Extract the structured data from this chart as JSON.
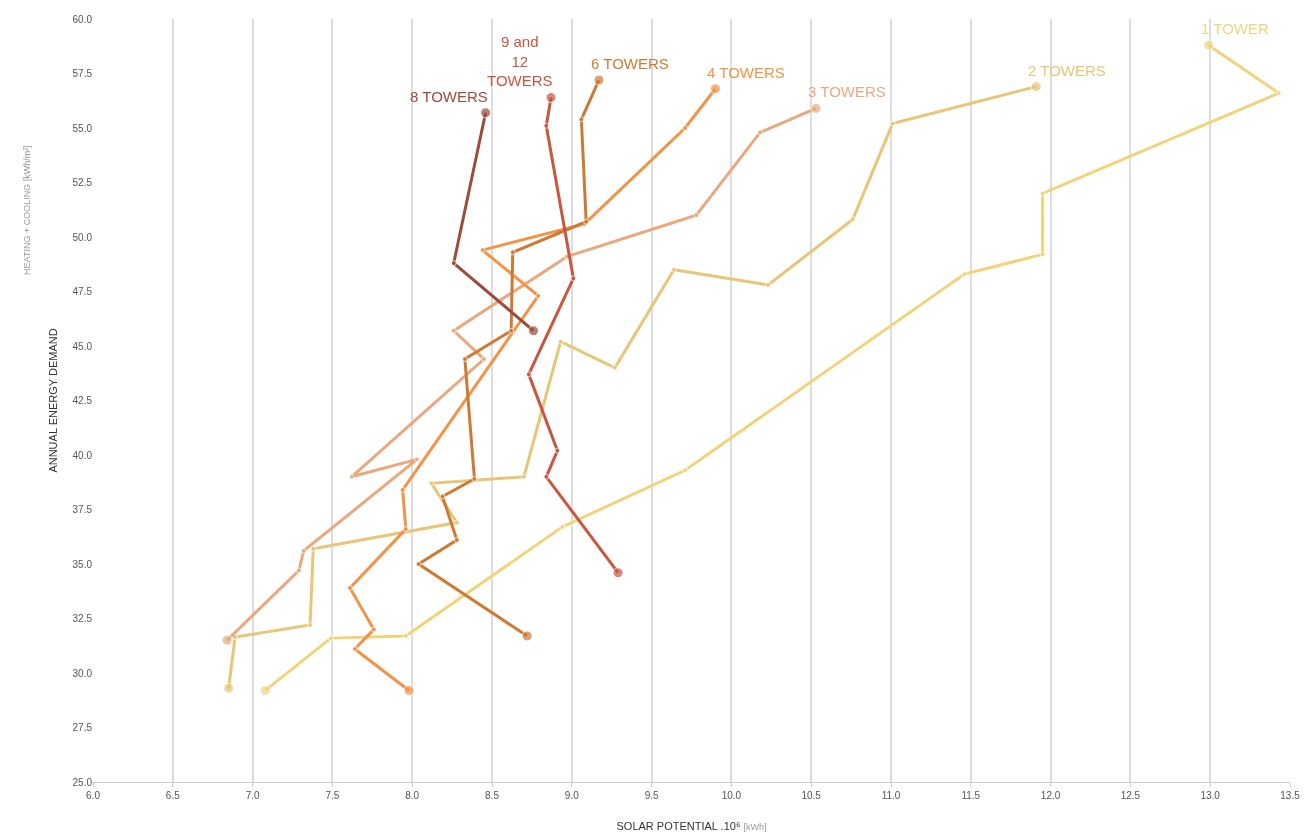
{
  "chart_data": {
    "type": "line",
    "xlabel": "SOLAR POTENTIAL .10⁶ [kWh]",
    "ylabel": "ANNUAL ENERGY DEMAND",
    "annotations": [
      "HEATING + COOLING [kWh/m²]"
    ],
    "xlim": [
      6,
      13.5
    ],
    "xticks": [
      {
        "value": 6,
        "label": "6.0"
      },
      6.5,
      {
        "value": 7,
        "label": "7.0"
      },
      7.5,
      {
        "value": 8,
        "label": "8.0"
      },
      8.5,
      {
        "value": 9,
        "label": "9.0"
      },
      9.5,
      {
        "value": 10,
        "label": "10.0"
      },
      10.5,
      {
        "value": 11,
        "label": "11.0"
      },
      11.5,
      {
        "value": 12,
        "label": "12.0"
      },
      12.5,
      {
        "value": 13,
        "label": "13.0"
      },
      13.5
    ],
    "ylim": [
      25,
      60
    ],
    "yticks": [
      {
        "value": 25,
        "label": "25.0"
      },
      27.5,
      {
        "value": 30,
        "label": "30.0"
      },
      32.5,
      {
        "value": 35,
        "label": "35.0"
      },
      37.5,
      {
        "value": 40,
        "label": "40.0"
      },
      42.5,
      {
        "value": 45,
        "label": "45.0"
      },
      47.5,
      {
        "value": 50,
        "label": "50.0"
      },
      52.5,
      {
        "value": 55,
        "label": "55.0"
      },
      57.5,
      {
        "value": 60,
        "label": "60.0"
      }
    ],
    "grid": "x",
    "legend": false,
    "marker": "circle",
    "line_style": "solid",
    "series": [
      {
        "name": "1 TOWER",
        "color": "#f2d27a",
        "x": [
          7.08,
          7.49,
          7.96,
          8.94,
          9.71,
          11.46,
          11.95,
          11.95,
          13.43,
          12.99
        ],
        "values": [
          29.2,
          31.6,
          31.7,
          36.7,
          39.3,
          48.3,
          49.2,
          52.0,
          56.6,
          58.8
        ]
      },
      {
        "name": "2 TOWERS",
        "color": "#e9c577",
        "x": [
          6.85,
          6.89,
          7.36,
          7.38,
          8.28,
          8.12,
          8.7,
          8.93,
          9.27,
          9.64,
          10.23,
          10.76,
          11.01,
          11.91
        ],
        "values": [
          29.3,
          31.65,
          32.2,
          35.7,
          36.9,
          38.7,
          39.0,
          45.2,
          44.0,
          48.5,
          47.8,
          50.8,
          55.2,
          56.9
        ]
      },
      {
        "name": "3 TOWERS",
        "color": "#eba77e",
        "x": [
          6.84,
          7.29,
          7.32,
          8.03,
          7.62,
          8.45,
          8.26,
          8.97,
          9.78,
          10.18,
          10.53
        ],
        "values": [
          31.5,
          34.7,
          35.6,
          39.8,
          39.0,
          44.4,
          45.7,
          49.1,
          51.0,
          54.8,
          55.9
        ]
      },
      {
        "name": "4 TOWERS",
        "color": "#f39347",
        "x": [
          7.98,
          7.64,
          7.76,
          7.61,
          7.96,
          7.94,
          8.79,
          8.44,
          9.08,
          9.71,
          9.9
        ],
        "values": [
          29.2,
          31.1,
          32.0,
          33.9,
          36.6,
          38.4,
          47.3,
          49.4,
          50.6,
          55.0,
          56.8
        ]
      },
      {
        "name": "6 TOWERS",
        "color": "#cf7a32",
        "x": [
          8.72,
          8.04,
          8.28,
          8.19,
          8.39,
          8.33,
          8.62,
          8.63,
          9.09,
          9.06,
          9.17
        ],
        "values": [
          31.7,
          35.0,
          36.1,
          38.1,
          38.9,
          44.4,
          45.7,
          49.3,
          50.7,
          55.4,
          57.2
        ]
      },
      {
        "name": "9 and 12 TOWERS",
        "color": "#c9563f",
        "x": [
          9.29,
          8.84,
          8.91,
          8.73,
          9.01,
          8.84,
          8.87
        ],
        "values": [
          34.6,
          39.0,
          40.2,
          43.7,
          48.1,
          55.1,
          56.4
        ]
      },
      {
        "name": "8 TOWERS",
        "color": "#9c4c3a",
        "x": [
          8.76,
          8.26,
          8.46
        ],
        "values": [
          45.7,
          48.8,
          55.7
        ]
      }
    ]
  }
}
